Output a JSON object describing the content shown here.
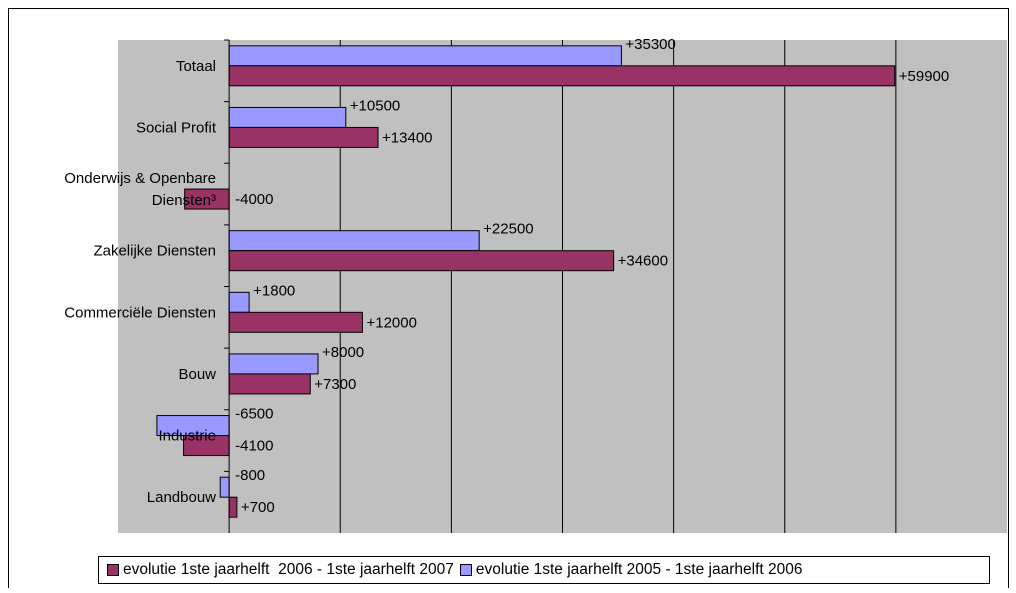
{
  "chart_data": {
    "type": "bar",
    "orientation": "horizontal",
    "categories": [
      "Totaal",
      "Social Profit",
      "Onderwijs & Openbare Diensten³",
      "Zakelijke Diensten",
      "Commerciële Diensten",
      "Bouw",
      "Industrie",
      "Landbouw"
    ],
    "category_lines": [
      [
        "Totaal"
      ],
      [
        "Social Profit"
      ],
      [
        "Onderwijs & Openbare",
        "Diensten³"
      ],
      [
        "Zakelijke Diensten"
      ],
      [
        "Commerciële Diensten"
      ],
      [
        "Bouw"
      ],
      [
        "Industrie"
      ],
      [
        "Landbouw"
      ]
    ],
    "series": [
      {
        "name": "evolutie 1ste jaarhelft 2005 - 1ste jaarhelft 2006",
        "color": "#9999ff",
        "values": [
          35300,
          10500,
          0,
          22500,
          1800,
          8000,
          -6500,
          -800
        ],
        "labels": [
          "+35300",
          "+10500",
          "",
          "+22500",
          "+1800",
          "+8000",
          "-6500",
          "-800"
        ]
      },
      {
        "name": "evolutie 1ste jaarhelft  2006 - 1ste jaarhelft 2007",
        "color": "#993366",
        "values": [
          59900,
          13400,
          -4000,
          34600,
          12000,
          7300,
          -4100,
          700
        ],
        "labels": [
          "+59900",
          "+13400",
          "-4000",
          "+34600",
          "+12000",
          "+7300",
          "-4100",
          "+700"
        ]
      }
    ],
    "xlim": [
      -10000,
      70000
    ],
    "grid": true,
    "plot_background": "#c0c0c0",
    "legend_position": "bottom",
    "legend_order": [
      1,
      0
    ]
  }
}
